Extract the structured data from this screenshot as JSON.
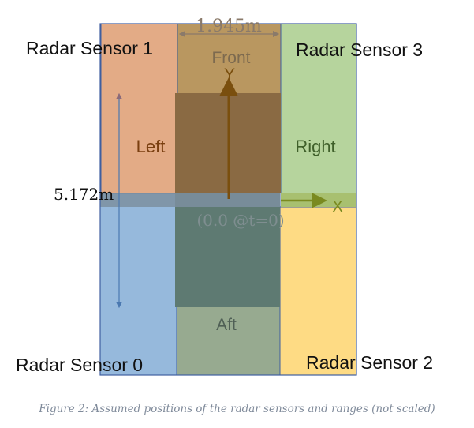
{
  "sensors": {
    "sensor_1": "Radar Sensor 1",
    "sensor_3": "Radar Sensor 3",
    "sensor_0": "Radar Sensor 0",
    "sensor_2": "Radar Sensor 2"
  },
  "regions": {
    "front": "Front",
    "left": "Left",
    "right": "Right",
    "aft": "Aft"
  },
  "dimensions": {
    "width": "1.945m",
    "length": "5.172m"
  },
  "axes": {
    "y": "Y",
    "x": "X",
    "origin": "(0.0 @t=0)"
  },
  "caption": "Figure 2: Assumed positions of the radar sensors and ranges (not scaled)",
  "colors": {
    "sensor_1_zone": "#e3ab86",
    "sensor_3_zone": "#b6d49d",
    "sensor_0_zone": "#96b9dc",
    "sensor_2_zone": "#fedb84",
    "front_zone": "#b99760",
    "aft_zone": "#97aa90",
    "vehicle": "#7d6a4f",
    "axis_arrow": "#7a4f0e",
    "border": "#3f5fa0"
  }
}
